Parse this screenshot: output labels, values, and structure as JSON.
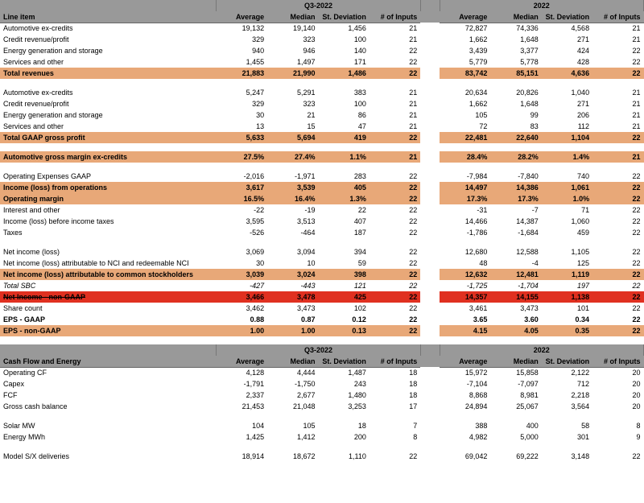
{
  "periods": [
    "Q3-2022",
    "2022"
  ],
  "col_headers": [
    "Average",
    "Median",
    "St. Deviation",
    "# of Inputs"
  ],
  "section1_header": "Line item",
  "section2_header": "Cash Flow and Energy",
  "rows1": [
    {
      "label": "Automotive ex-credits",
      "q": [
        "19,132",
        "19,140",
        "1,456",
        "21"
      ],
      "y": [
        "72,827",
        "74,336",
        "4,568",
        "21"
      ]
    },
    {
      "label": "Credit revenue/profit",
      "q": [
        "329",
        "323",
        "100",
        "21"
      ],
      "y": [
        "1,662",
        "1,648",
        "271",
        "21"
      ]
    },
    {
      "label": "Energy generation and storage",
      "q": [
        "940",
        "946",
        "140",
        "22"
      ],
      "y": [
        "3,439",
        "3,377",
        "424",
        "22"
      ]
    },
    {
      "label": "Services and other",
      "q": [
        "1,455",
        "1,497",
        "171",
        "22"
      ],
      "y": [
        "5,779",
        "5,778",
        "428",
        "22"
      ]
    },
    {
      "label": "Total revenues",
      "q": [
        "21,883",
        "21,990",
        "1,486",
        "22"
      ],
      "y": [
        "83,742",
        "85,151",
        "4,636",
        "22"
      ],
      "style": "hl-orange"
    },
    {
      "blank": true
    },
    {
      "label": "Automotive ex-credits",
      "q": [
        "5,247",
        "5,291",
        "383",
        "21"
      ],
      "y": [
        "20,634",
        "20,826",
        "1,040",
        "21"
      ]
    },
    {
      "label": "Credit revenue/profit",
      "q": [
        "329",
        "323",
        "100",
        "21"
      ],
      "y": [
        "1,662",
        "1,648",
        "271",
        "21"
      ]
    },
    {
      "label": "Energy generation and storage",
      "q": [
        "30",
        "21",
        "86",
        "21"
      ],
      "y": [
        "105",
        "99",
        "206",
        "21"
      ]
    },
    {
      "label": "Services and other",
      "q": [
        "13",
        "15",
        "47",
        "21"
      ],
      "y": [
        "72",
        "83",
        "112",
        "21"
      ]
    },
    {
      "label": "Total GAAP gross profit",
      "q": [
        "5,633",
        "5,694",
        "419",
        "22"
      ],
      "y": [
        "22,481",
        "22,640",
        "1,104",
        "22"
      ],
      "style": "hl-orange"
    },
    {
      "blank": true
    },
    {
      "label": "Automotive gross margin ex-credits",
      "q": [
        "27.5%",
        "27.4%",
        "1.1%",
        "21"
      ],
      "y": [
        "28.4%",
        "28.2%",
        "1.4%",
        "21"
      ],
      "style": "hl-orange-light"
    },
    {
      "blank": true
    },
    {
      "label": "Operating Expenses GAAP",
      "q": [
        "-2,016",
        "-1,971",
        "283",
        "22"
      ],
      "y": [
        "-7,984",
        "-7,840",
        "740",
        "22"
      ]
    },
    {
      "label": "Income (loss) from operations",
      "q": [
        "3,617",
        "3,539",
        "405",
        "22"
      ],
      "y": [
        "14,497",
        "14,386",
        "1,061",
        "22"
      ],
      "style": "hl-orange"
    },
    {
      "label": "Operating margin",
      "q": [
        "16.5%",
        "16.4%",
        "1.3%",
        "22"
      ],
      "y": [
        "17.3%",
        "17.3%",
        "1.0%",
        "22"
      ],
      "style": "hl-orange"
    },
    {
      "label": "Interest and other",
      "q": [
        "-22",
        "-19",
        "22",
        "22"
      ],
      "y": [
        "-31",
        "-7",
        "71",
        "22"
      ]
    },
    {
      "label": "Income (loss) before income taxes",
      "q": [
        "3,595",
        "3,513",
        "407",
        "22"
      ],
      "y": [
        "14,466",
        "14,387",
        "1,060",
        "22"
      ]
    },
    {
      "label": "Taxes",
      "q": [
        "-526",
        "-464",
        "187",
        "22"
      ],
      "y": [
        "-1,786",
        "-1,684",
        "459",
        "22"
      ]
    },
    {
      "blank": true
    },
    {
      "label": "Net income (loss)",
      "q": [
        "3,069",
        "3,094",
        "394",
        "22"
      ],
      "y": [
        "12,680",
        "12,588",
        "1,105",
        "22"
      ]
    },
    {
      "label": "Net income (loss) attributable to NCI and redeemable NCI",
      "q": [
        "30",
        "10",
        "59",
        "22"
      ],
      "y": [
        "48",
        "-4",
        "125",
        "22"
      ]
    },
    {
      "label": "Net income (loss) attributable to common stockholders",
      "q": [
        "3,039",
        "3,024",
        "398",
        "22"
      ],
      "y": [
        "12,632",
        "12,481",
        "1,119",
        "22"
      ],
      "style": "hl-orange"
    },
    {
      "label": "Total SBC",
      "q": [
        "-427",
        "-443",
        "121",
        "22"
      ],
      "y": [
        "-1,725",
        "-1,704",
        "197",
        "22"
      ],
      "style": "italic"
    },
    {
      "label": "Net Income - non-GAAP",
      "q": [
        "3,466",
        "3,478",
        "425",
        "22"
      ],
      "y": [
        "14,357",
        "14,155",
        "1,138",
        "22"
      ],
      "style": "hl-red"
    },
    {
      "label": "Share count",
      "q": [
        "3,462",
        "3,473",
        "102",
        "22"
      ],
      "y": [
        "3,461",
        "3,473",
        "101",
        "22"
      ]
    },
    {
      "label": "EPS - GAAP",
      "q": [
        "0.88",
        "0.87",
        "0.12",
        "22"
      ],
      "y": [
        "3.65",
        "3.60",
        "0.34",
        "22"
      ],
      "style": "bold"
    },
    {
      "label": "EPS - non-GAAP",
      "q": [
        "1.00",
        "1.00",
        "0.13",
        "22"
      ],
      "y": [
        "4.15",
        "4.05",
        "0.35",
        "22"
      ],
      "style": "hl-orange"
    }
  ],
  "rows2": [
    {
      "label": "Operating CF",
      "q": [
        "4,128",
        "4,444",
        "1,487",
        "18"
      ],
      "y": [
        "15,972",
        "15,858",
        "2,122",
        "20"
      ]
    },
    {
      "label": "Capex",
      "q": [
        "-1,791",
        "-1,750",
        "243",
        "18"
      ],
      "y": [
        "-7,104",
        "-7,097",
        "712",
        "20"
      ]
    },
    {
      "label": "FCF",
      "q": [
        "2,337",
        "2,677",
        "1,480",
        "18"
      ],
      "y": [
        "8,868",
        "8,981",
        "2,218",
        "20"
      ]
    },
    {
      "label": "Gross cash balance",
      "q": [
        "21,453",
        "21,048",
        "3,253",
        "17"
      ],
      "y": [
        "24,894",
        "25,067",
        "3,564",
        "20"
      ]
    },
    {
      "blank": true
    },
    {
      "label": "Solar MW",
      "q": [
        "104",
        "105",
        "18",
        "7"
      ],
      "y": [
        "388",
        "400",
        "58",
        "8"
      ]
    },
    {
      "label": "Energy MWh",
      "q": [
        "1,425",
        "1,412",
        "200",
        "8"
      ],
      "y": [
        "4,982",
        "5,000",
        "301",
        "9"
      ]
    },
    {
      "blank": true
    },
    {
      "label": "Model S/X deliveries",
      "q": [
        "18,914",
        "18,672",
        "1,110",
        "22"
      ],
      "y": [
        "69,042",
        "69,222",
        "3,148",
        "22"
      ]
    }
  ],
  "colors": {
    "header_bg": "#999999",
    "orange": "#e8a878",
    "red": "#e03020"
  }
}
